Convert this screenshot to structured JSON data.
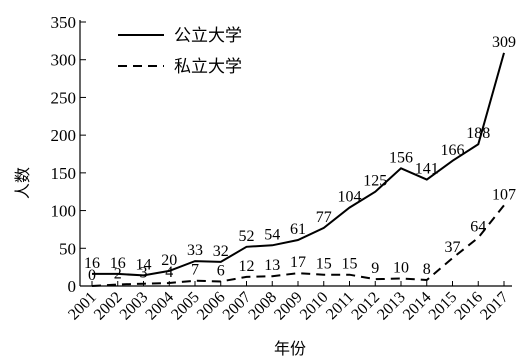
{
  "chart_data": {
    "type": "line",
    "title": "",
    "xlabel": "年份",
    "ylabel": "人数",
    "ylim": [
      0,
      350
    ],
    "yticks": [
      0,
      50,
      100,
      150,
      200,
      250,
      300,
      350
    ],
    "categories": [
      "2001",
      "2002",
      "2003",
      "2004",
      "2005",
      "2006",
      "2007",
      "2008",
      "2009",
      "2010",
      "2011",
      "2012",
      "2013",
      "2014",
      "2015",
      "2016",
      "2017"
    ],
    "series": [
      {
        "name": "公立大学",
        "style": "solid",
        "values": [
          16,
          16,
          14,
          20,
          33,
          32,
          52,
          54,
          61,
          77,
          104,
          125,
          156,
          141,
          166,
          188,
          309
        ]
      },
      {
        "name": "私立大学",
        "style": "dashed",
        "values": [
          0,
          2,
          3,
          4,
          7,
          6,
          12,
          13,
          17,
          15,
          15,
          9,
          10,
          8,
          37,
          64,
          107
        ]
      }
    ],
    "legend": "top-left",
    "grid": false,
    "line_color": "#000000"
  }
}
